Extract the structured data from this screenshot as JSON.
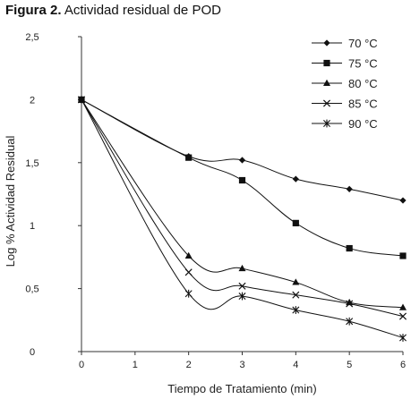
{
  "figure": {
    "label": "Figura 2.",
    "caption": "Actividad residual de POD"
  },
  "chart_data": {
    "type": "line",
    "title": "Figura 2. Actividad residual de POD",
    "xlabel": "Tiempo de Tratamiento (min)",
    "ylabel": "Log % Actividad Residual",
    "xlim": [
      0,
      6
    ],
    "ylim": [
      0,
      2.5
    ],
    "x_ticks": [
      "0",
      "1",
      "2",
      "3",
      "4",
      "5",
      "6"
    ],
    "y_ticks": [
      "0",
      "0,5",
      "1",
      "1,5",
      "2",
      "2,5"
    ],
    "grid": false,
    "legend_position": "top-right",
    "series": [
      {
        "name": "70 °C",
        "marker": "diamond",
        "x": [
          0,
          2,
          3,
          4,
          5,
          6
        ],
        "values": [
          2.0,
          1.55,
          1.52,
          1.37,
          1.29,
          1.2
        ]
      },
      {
        "name": "75 °C",
        "marker": "square",
        "x": [
          0,
          2,
          3,
          4,
          5,
          6
        ],
        "values": [
          2.0,
          1.54,
          1.36,
          1.02,
          0.82,
          0.76
        ]
      },
      {
        "name": "80 °C",
        "marker": "triangle",
        "x": [
          0,
          2,
          3,
          4,
          5,
          6
        ],
        "values": [
          2.0,
          0.76,
          0.66,
          0.55,
          0.39,
          0.35
        ]
      },
      {
        "name": "85 °C",
        "marker": "x",
        "x": [
          0,
          2,
          3,
          4,
          5,
          6
        ],
        "values": [
          2.0,
          0.63,
          0.52,
          0.45,
          0.38,
          0.28
        ]
      },
      {
        "name": "90 °C",
        "marker": "asterisk",
        "x": [
          0,
          2,
          3,
          4,
          5,
          6
        ],
        "values": [
          2.0,
          0.46,
          0.44,
          0.33,
          0.24,
          0.11
        ]
      }
    ]
  }
}
